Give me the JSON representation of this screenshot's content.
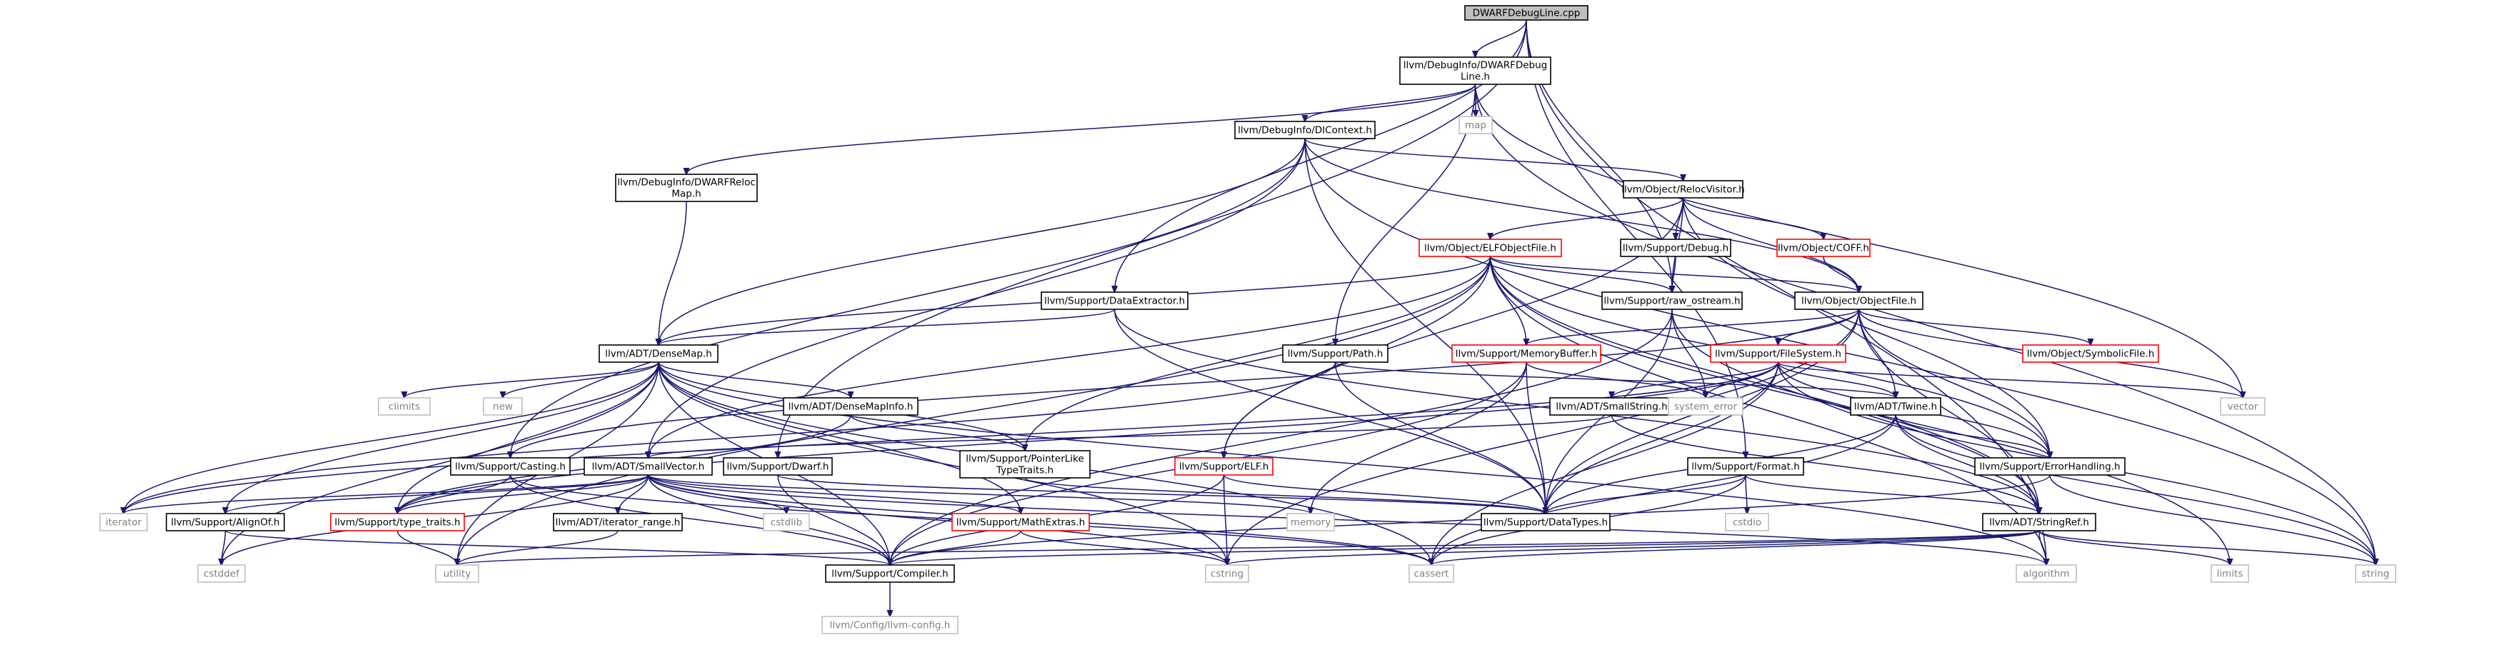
{
  "diagram": {
    "title": "DWARFDebugLine.cpp",
    "colors": {
      "edge": "#191970",
      "root_fill": "#bfbfbf",
      "box_stroke": "#000000",
      "gray_stroke": "#bfbfbf",
      "red_stroke": "#ff0000",
      "text": "#000000",
      "gray_text": "#808080"
    },
    "nodes": [
      {
        "id": "root",
        "lines": [
          "DWARFDebugLine.cpp"
        ],
        "style": "root"
      },
      {
        "id": "dwarfdebugline",
        "lines": [
          "llvm/DebugInfo/DWARFDebug",
          "Line.h"
        ],
        "style": "box"
      },
      {
        "id": "map",
        "lines": [
          "map"
        ],
        "style": "gray"
      },
      {
        "id": "dicontext",
        "lines": [
          "llvm/DebugInfo/DIContext.h"
        ],
        "style": "box"
      },
      {
        "id": "relocmap",
        "lines": [
          "llvm/DebugInfo/DWARFReloc",
          "Map.h"
        ],
        "style": "box"
      },
      {
        "id": "relocvisitor",
        "lines": [
          "llvm/Object/RelocVisitor.h"
        ],
        "style": "box"
      },
      {
        "id": "elfobjectfile",
        "lines": [
          "llvm/Object/ELFObjectFile.h"
        ],
        "style": "red"
      },
      {
        "id": "supportdebug",
        "lines": [
          "llvm/Support/Debug.h"
        ],
        "style": "box"
      },
      {
        "id": "coff",
        "lines": [
          "llvm/Object/COFF.h"
        ],
        "style": "red"
      },
      {
        "id": "dataextractor",
        "lines": [
          "llvm/Support/DataExtractor.h"
        ],
        "style": "box"
      },
      {
        "id": "raw_ostream",
        "lines": [
          "llvm/Support/raw_ostream.h"
        ],
        "style": "box"
      },
      {
        "id": "objectfile",
        "lines": [
          "llvm/Object/ObjectFile.h"
        ],
        "style": "box"
      },
      {
        "id": "densemap",
        "lines": [
          "llvm/ADT/DenseMap.h"
        ],
        "style": "box"
      },
      {
        "id": "path",
        "lines": [
          "llvm/Support/Path.h"
        ],
        "style": "box"
      },
      {
        "id": "memorybuffer",
        "lines": [
          "llvm/Support/MemoryBuffer.h"
        ],
        "style": "red"
      },
      {
        "id": "filesystem",
        "lines": [
          "llvm/Support/FileSystem.h"
        ],
        "style": "red"
      },
      {
        "id": "symbolicfile",
        "lines": [
          "llvm/Object/SymbolicFile.h"
        ],
        "style": "red"
      },
      {
        "id": "climits",
        "lines": [
          "climits"
        ],
        "style": "gray"
      },
      {
        "id": "new",
        "lines": [
          "new"
        ],
        "style": "gray"
      },
      {
        "id": "densemapinfo",
        "lines": [
          "llvm/ADT/DenseMapInfo.h"
        ],
        "style": "box"
      },
      {
        "id": "smallstring",
        "lines": [
          "llvm/ADT/SmallString.h"
        ],
        "style": "box"
      },
      {
        "id": "system_error",
        "lines": [
          "system_error"
        ],
        "style": "gray"
      },
      {
        "id": "twine",
        "lines": [
          "llvm/ADT/Twine.h"
        ],
        "style": "box"
      },
      {
        "id": "vector",
        "lines": [
          "vector"
        ],
        "style": "gray"
      },
      {
        "id": "casting",
        "lines": [
          "llvm/Support/Casting.h"
        ],
        "style": "box"
      },
      {
        "id": "smallvector",
        "lines": [
          "llvm/ADT/SmallVector.h"
        ],
        "style": "box"
      },
      {
        "id": "supportdwarf",
        "lines": [
          "llvm/Support/Dwarf.h"
        ],
        "style": "box"
      },
      {
        "id": "pointerlike",
        "lines": [
          "llvm/Support/PointerLike",
          "TypeTraits.h"
        ],
        "style": "box"
      },
      {
        "id": "supportelf",
        "lines": [
          "llvm/Support/ELF.h"
        ],
        "style": "red"
      },
      {
        "id": "format",
        "lines": [
          "llvm/Support/Format.h"
        ],
        "style": "box"
      },
      {
        "id": "errorhandling",
        "lines": [
          "llvm/Support/ErrorHandling.h"
        ],
        "style": "box"
      },
      {
        "id": "iterator",
        "lines": [
          "iterator"
        ],
        "style": "gray"
      },
      {
        "id": "alignof",
        "lines": [
          "llvm/Support/AlignOf.h"
        ],
        "style": "box"
      },
      {
        "id": "type_traits",
        "lines": [
          "llvm/Support/type_traits.h"
        ],
        "style": "red"
      },
      {
        "id": "cstdlib",
        "lines": [
          "cstdlib"
        ],
        "style": "gray"
      },
      {
        "id": "iterator_range",
        "lines": [
          "llvm/ADT/iterator_range.h"
        ],
        "style": "box"
      },
      {
        "id": "mathextras",
        "lines": [
          "llvm/Support/MathExtras.h"
        ],
        "style": "red"
      },
      {
        "id": "memory",
        "lines": [
          "memory"
        ],
        "style": "gray"
      },
      {
        "id": "datatypes",
        "lines": [
          "llvm/Support/DataTypes.h"
        ],
        "style": "box"
      },
      {
        "id": "cstdio",
        "lines": [
          "cstdio"
        ],
        "style": "gray"
      },
      {
        "id": "stringref",
        "lines": [
          "llvm/ADT/StringRef.h"
        ],
        "style": "box"
      },
      {
        "id": "cstddef",
        "lines": [
          "cstddef"
        ],
        "style": "gray"
      },
      {
        "id": "utility",
        "lines": [
          "utility"
        ],
        "style": "gray"
      },
      {
        "id": "compiler",
        "lines": [
          "llvm/Support/Compiler.h"
        ],
        "style": "box"
      },
      {
        "id": "cstring",
        "lines": [
          "cstring"
        ],
        "style": "gray"
      },
      {
        "id": "cassert",
        "lines": [
          "cassert"
        ],
        "style": "gray"
      },
      {
        "id": "algorithm",
        "lines": [
          "algorithm"
        ],
        "style": "gray"
      },
      {
        "id": "limits",
        "lines": [
          "limits"
        ],
        "style": "gray"
      },
      {
        "id": "string",
        "lines": [
          "string"
        ],
        "style": "gray"
      },
      {
        "id": "llvmconfig",
        "lines": [
          "llvm/Config/llvm-config.h"
        ],
        "style": "gray"
      }
    ],
    "edges": [
      [
        "root",
        "dwarfdebugline"
      ],
      [
        "root",
        "dataextractor"
      ],
      [
        "root",
        "raw_ostream"
      ],
      [
        "root",
        "supportdwarf"
      ],
      [
        "root",
        "format"
      ],
      [
        "root",
        "algorithm"
      ],
      [
        "dwarfdebugline",
        "dicontext"
      ],
      [
        "dwarfdebugline",
        "relocmap"
      ],
      [
        "dwarfdebugline",
        "map"
      ],
      [
        "dwarfdebugline",
        "path"
      ],
      [
        "dwarfdebugline",
        "string"
      ],
      [
        "dwarfdebugline",
        "vector"
      ],
      [
        "dicontext",
        "densemap"
      ],
      [
        "dicontext",
        "smallvector"
      ],
      [
        "dicontext",
        "relocvisitor"
      ],
      [
        "dicontext",
        "objectfile"
      ],
      [
        "dicontext",
        "casting"
      ],
      [
        "dicontext",
        "datatypes"
      ],
      [
        "dicontext",
        "string"
      ],
      [
        "relocmap",
        "densemap"
      ],
      [
        "relocvisitor",
        "elfobjectfile"
      ],
      [
        "relocvisitor",
        "supportdebug"
      ],
      [
        "relocvisitor",
        "coff"
      ],
      [
        "relocvisitor",
        "objectfile"
      ],
      [
        "relocvisitor",
        "raw_ostream"
      ],
      [
        "relocvisitor",
        "supportelf"
      ],
      [
        "relocvisitor",
        "errorhandling"
      ],
      [
        "elfobjectfile",
        "densemap"
      ],
      [
        "elfobjectfile",
        "raw_ostream"
      ],
      [
        "elfobjectfile",
        "objectfile"
      ],
      [
        "elfobjectfile",
        "memorybuffer"
      ],
      [
        "elfobjectfile",
        "supportelf"
      ],
      [
        "elfobjectfile",
        "smallvector"
      ],
      [
        "elfobjectfile",
        "pointerlike"
      ],
      [
        "elfobjectfile",
        "stringref"
      ],
      [
        "elfobjectfile",
        "errorhandling"
      ],
      [
        "elfobjectfile",
        "utility"
      ],
      [
        "elfobjectfile",
        "limits"
      ],
      [
        "elfobjectfile",
        "algorithm"
      ],
      [
        "supportdebug",
        "raw_ostream"
      ],
      [
        "coff",
        "objectfile"
      ],
      [
        "dataextractor",
        "densemap"
      ],
      [
        "dataextractor",
        "datatypes"
      ],
      [
        "dataextractor",
        "stringref"
      ],
      [
        "raw_ostream",
        "stringref"
      ],
      [
        "raw_ostream",
        "compiler"
      ],
      [
        "raw_ostream",
        "system_error"
      ],
      [
        "raw_ostream",
        "datatypes"
      ],
      [
        "objectfile",
        "memorybuffer"
      ],
      [
        "objectfile",
        "filesystem"
      ],
      [
        "objectfile",
        "symbolicfile"
      ],
      [
        "objectfile",
        "twine"
      ],
      [
        "objectfile",
        "stringref"
      ],
      [
        "objectfile",
        "datatypes"
      ],
      [
        "objectfile",
        "errorhandling"
      ],
      [
        "objectfile",
        "cstring"
      ],
      [
        "objectfile",
        "vector"
      ],
      [
        "objectfile",
        "casting"
      ],
      [
        "densemap",
        "densemapinfo"
      ],
      [
        "densemap",
        "alignof"
      ],
      [
        "densemap",
        "compiler"
      ],
      [
        "densemap",
        "mathextras"
      ],
      [
        "densemap",
        "pointerlike"
      ],
      [
        "densemap",
        "type_traits"
      ],
      [
        "densemap",
        "algorithm"
      ],
      [
        "densemap",
        "cassert"
      ],
      [
        "densemap",
        "climits"
      ],
      [
        "densemap",
        "cstddef"
      ],
      [
        "densemap",
        "cstring"
      ],
      [
        "densemap",
        "iterator"
      ],
      [
        "densemap",
        "new"
      ],
      [
        "densemap",
        "utility"
      ],
      [
        "path",
        "twine"
      ],
      [
        "path",
        "datatypes"
      ],
      [
        "path",
        "iterator"
      ],
      [
        "path",
        "cctype"
      ],
      [
        "memorybuffer",
        "datatypes"
      ],
      [
        "memorybuffer",
        "compiler"
      ],
      [
        "memorybuffer",
        "memory"
      ],
      [
        "memorybuffer",
        "system_error"
      ],
      [
        "filesystem",
        "smallstring"
      ],
      [
        "filesystem",
        "twine"
      ],
      [
        "filesystem",
        "datatypes"
      ],
      [
        "filesystem",
        "errorhandling"
      ],
      [
        "filesystem",
        "type_traits"
      ],
      [
        "filesystem",
        "cassert"
      ],
      [
        "filesystem",
        "string"
      ],
      [
        "filesystem",
        "system_error"
      ],
      [
        "filesystem",
        "vector"
      ],
      [
        "filesystem",
        "iterator"
      ],
      [
        "densemapinfo",
        "pointerlike"
      ],
      [
        "densemapinfo",
        "type_traits"
      ],
      [
        "smallstring",
        "smallvector"
      ],
      [
        "smallstring",
        "stringref"
      ],
      [
        "twine",
        "stringref"
      ],
      [
        "twine",
        "datatypes"
      ],
      [
        "twine",
        "errorhandling"
      ],
      [
        "twine",
        "cassert"
      ],
      [
        "twine",
        "string"
      ],
      [
        "casting",
        "type_traits"
      ],
      [
        "casting",
        "compiler"
      ],
      [
        "casting",
        "cassert"
      ],
      [
        "smallvector",
        "alignof"
      ],
      [
        "smallvector",
        "compiler"
      ],
      [
        "smallvector",
        "mathextras"
      ],
      [
        "smallvector",
        "type_traits"
      ],
      [
        "smallvector",
        "iterator_range"
      ],
      [
        "smallvector",
        "algorithm"
      ],
      [
        "smallvector",
        "cassert"
      ],
      [
        "smallvector",
        "cstddef"
      ],
      [
        "smallvector",
        "cstdlib"
      ],
      [
        "smallvector",
        "cstring"
      ],
      [
        "smallvector",
        "iterator"
      ],
      [
        "smallvector",
        "memory"
      ],
      [
        "supportdwarf",
        "datatypes"
      ],
      [
        "supportdwarf",
        "compiler"
      ],
      [
        "pointerlike",
        "datatypes"
      ],
      [
        "supportelf",
        "datatypes"
      ],
      [
        "supportelf",
        "compiler"
      ],
      [
        "supportelf",
        "cstring"
      ],
      [
        "format",
        "datatypes"
      ],
      [
        "format",
        "stringref"
      ],
      [
        "format",
        "cassert"
      ],
      [
        "format",
        "cstdio"
      ],
      [
        "errorhandling",
        "compiler"
      ],
      [
        "errorhandling",
        "string"
      ],
      [
        "alignof",
        "compiler"
      ],
      [
        "alignof",
        "cstddef"
      ],
      [
        "type_traits",
        "utility"
      ],
      [
        "iterator_range",
        "utility"
      ],
      [
        "mathextras",
        "compiler"
      ],
      [
        "mathextras",
        "cstring"
      ],
      [
        "stringref",
        "compiler"
      ],
      [
        "stringref",
        "algorithm"
      ],
      [
        "stringref",
        "cassert"
      ],
      [
        "stringref",
        "cstring"
      ],
      [
        "stringref",
        "limits"
      ],
      [
        "stringref",
        "string"
      ],
      [
        "stringref",
        "utility"
      ],
      [
        "compiler",
        "llvmconfig"
      ]
    ]
  }
}
